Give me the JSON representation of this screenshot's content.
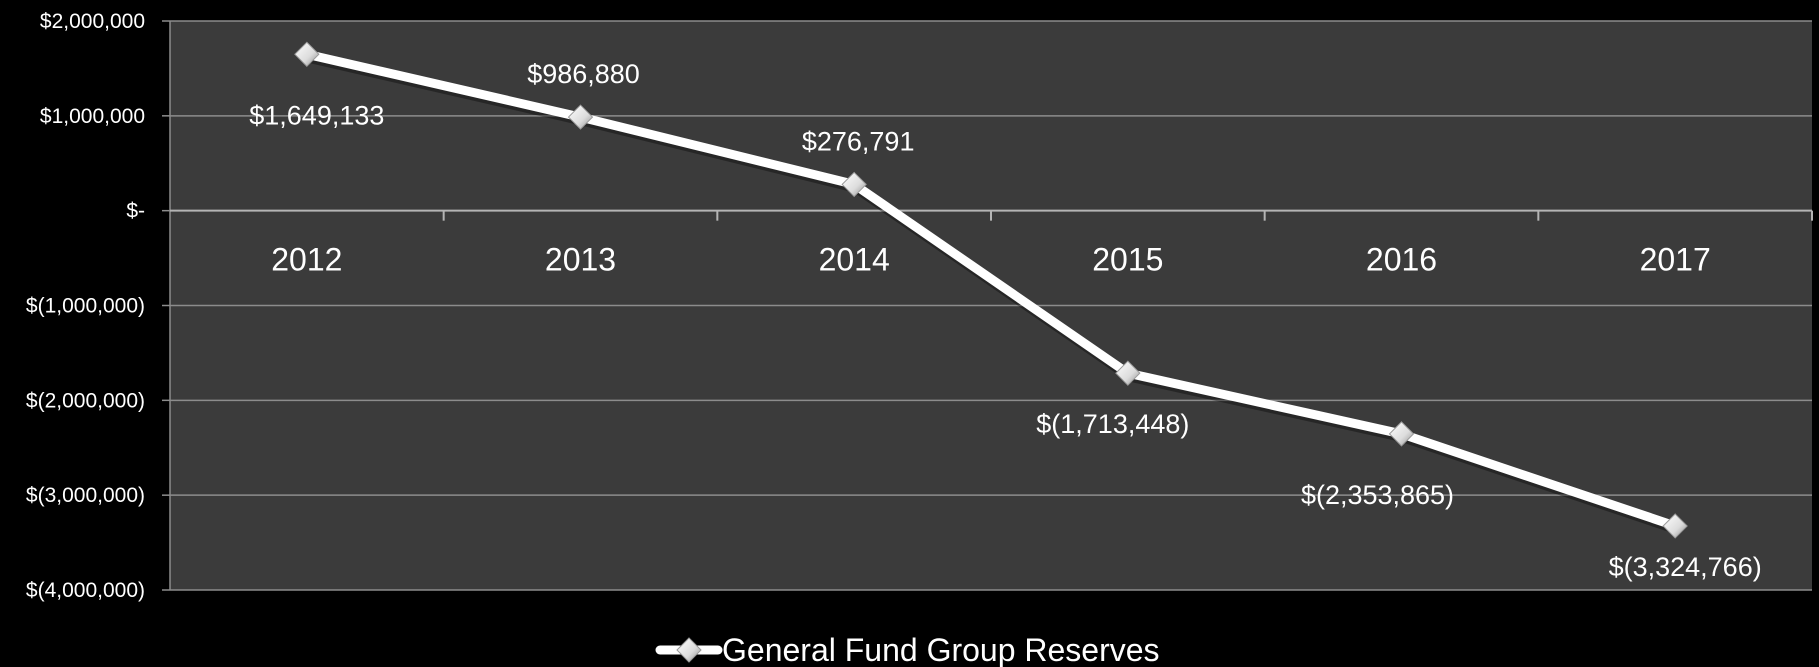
{
  "chart_data": {
    "type": "line",
    "categories": [
      "2012",
      "2013",
      "2014",
      "2015",
      "2016",
      "2017"
    ],
    "series": [
      {
        "name": "General Fund Group Reserves",
        "values": [
          1649133,
          986880,
          276791,
          -1713448,
          -2353865,
          -3324766
        ],
        "data_labels": [
          "$1,649,133",
          "$986,880",
          "$276,791",
          "$(1,713,448)",
          "$(2,353,865)",
          "$(3,324,766)"
        ]
      }
    ],
    "ylim": [
      -4000000,
      2000000
    ],
    "y_ticks": [
      2000000,
      1000000,
      0,
      -1000000,
      -2000000,
      -3000000,
      -4000000
    ],
    "y_tick_labels": [
      "$2,000,000",
      "$1,000,000",
      "$-",
      "$(1,000,000)",
      "$(2,000,000)",
      "$(3,000,000)",
      "$(4,000,000)"
    ],
    "xlabel": "",
    "ylabel": "",
    "grid": true,
    "legend_position": "bottom",
    "colors": {
      "background": "#000000",
      "plot_area": "#3b3b3b",
      "gridline": "#8c8c8c",
      "line": "#ffffff",
      "text": "#ffffff"
    }
  }
}
